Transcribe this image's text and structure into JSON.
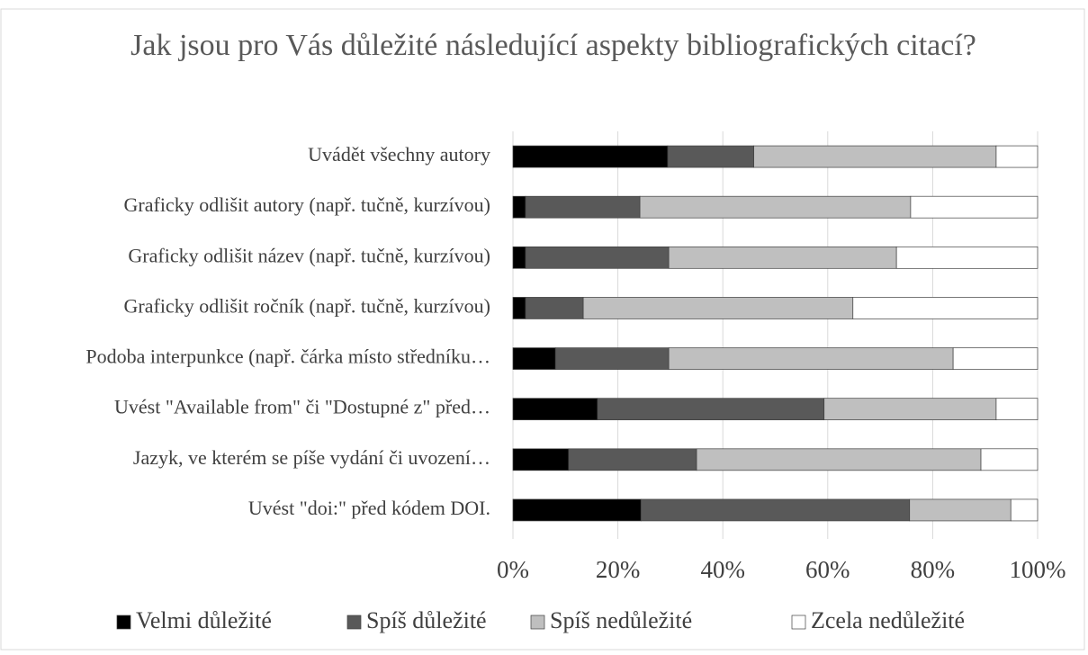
{
  "chart_data": {
    "type": "stacked-barh",
    "title": "Jak jsou pro Vás důležité následující aspekty bibliografických citací?",
    "categories": [
      "Uvádět všechny autory",
      "Graficky odlišit autory (např. tučně, kurzívou)",
      "Graficky odlišit název (např. tučně, kurzívou)",
      "Graficky odlišit ročník (např. tučně, kurzívou)",
      "Podoba interpunkce (např. čárka místo středníku…",
      "Uvést \"Available from\" či \"Dostupné z\" před…",
      "Jazyk, ve kterém se píše vydání či uvození…",
      "Uvést \"doi:\" před kódem DOI."
    ],
    "series": [
      {
        "name": "Velmi důležité",
        "color": "#000000",
        "values": [
          29.5,
          2.4,
          2.4,
          2.4,
          8.1,
          16.1,
          10.6,
          24.4
        ]
      },
      {
        "name": "Spíš důležité",
        "color": "#595959",
        "values": [
          16.4,
          21.8,
          27.3,
          11.0,
          21.6,
          43.2,
          24.4,
          51.2
        ]
      },
      {
        "name": "Spíš nedůležité",
        "color": "#bfbfbf",
        "values": [
          46.2,
          51.6,
          43.4,
          51.4,
          54.2,
          32.8,
          54.2,
          19.3
        ]
      },
      {
        "name": "Zcela nedůležité",
        "color": "#ffffff",
        "values": [
          7.9,
          24.2,
          26.9,
          35.2,
          16.1,
          7.9,
          10.8,
          5.1
        ]
      }
    ],
    "xlim": [
      0,
      100
    ],
    "xticks": [
      {
        "value": 0,
        "label": "0%"
      },
      {
        "value": 20,
        "label": "20%"
      },
      {
        "value": 40,
        "label": "40%"
      },
      {
        "value": 60,
        "label": "60%"
      },
      {
        "value": 80,
        "label": "80%"
      },
      {
        "value": 100,
        "label": "100%"
      }
    ],
    "grid": true,
    "legend": "bottom"
  }
}
